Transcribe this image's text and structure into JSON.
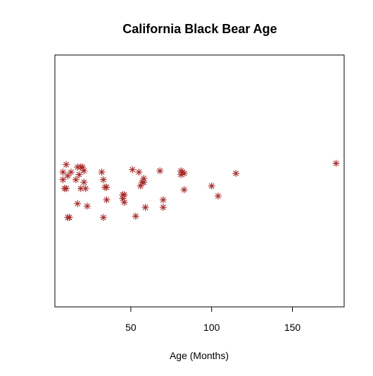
{
  "chart_data": {
    "type": "scatter",
    "title": "California Black Bear Age",
    "xlabel": "Age (Months)",
    "ylabel": "",
    "xlim": [
      3,
      182
    ],
    "ylim": [
      -1,
      1
    ],
    "x_ticks": [
      50,
      100,
      150
    ],
    "x_tick_labels": [
      "50",
      "100",
      "150"
    ],
    "marker": "asterisk",
    "marker_color": "#a52a2a",
    "grid": false,
    "legend": "none",
    "series": [
      {
        "x": [
          8,
          8,
          9,
          10,
          10,
          11,
          11,
          12,
          13,
          16,
          17,
          17,
          18,
          19,
          19,
          20,
          21,
          21,
          22,
          23,
          32,
          33,
          33,
          34,
          35,
          35,
          45,
          45,
          46,
          46,
          51,
          53,
          55,
          56,
          57,
          58,
          58,
          59,
          68,
          70,
          70,
          81,
          81,
          82,
          83,
          83,
          100,
          104,
          115,
          177
        ],
        "y": [
          0.07,
          0.01,
          -0.06,
          0.13,
          -0.06,
          0.04,
          -0.29,
          -0.29,
          0.07,
          0.01,
          0.11,
          -0.18,
          0.05,
          0.11,
          -0.06,
          0.11,
          0.08,
          -0.01,
          -0.06,
          -0.2,
          0.07,
          0.01,
          -0.29,
          -0.05,
          -0.05,
          -0.15,
          -0.11,
          -0.14,
          -0.17,
          -0.11,
          0.09,
          -0.28,
          0.07,
          -0.04,
          -0.01,
          0.02,
          -0.01,
          -0.21,
          0.08,
          -0.15,
          -0.21,
          0.08,
          0.05,
          0.07,
          0.06,
          -0.07,
          -0.04,
          -0.12,
          0.06,
          0.14
        ]
      }
    ]
  }
}
